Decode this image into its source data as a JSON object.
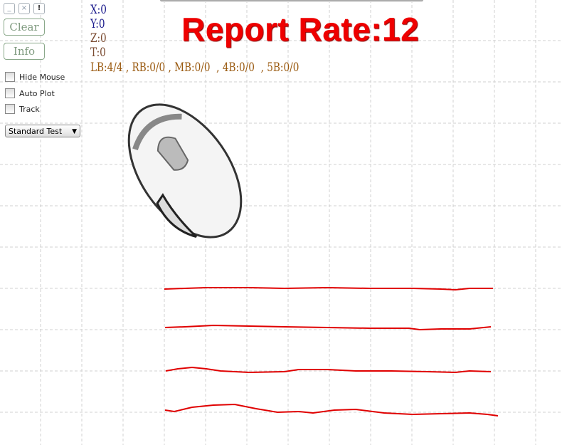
{
  "window_buttons": [
    {
      "label": "_",
      "name": "minimize"
    },
    {
      "label": "×",
      "name": "close"
    },
    {
      "label": "!",
      "name": "alert"
    }
  ],
  "buttons": {
    "clear": "Clear",
    "info": "Info"
  },
  "checkboxes": [
    {
      "label": "Hide Mouse",
      "checked": false
    },
    {
      "label": "Auto Plot",
      "checked": false
    },
    {
      "label": "Track",
      "checked": false
    }
  ],
  "mode_select": {
    "value": "Standard Test"
  },
  "readout": {
    "x": "X:0",
    "y": "Y:0",
    "z": "Z:0",
    "t": "T:0",
    "buttons": "LB:4/4 , RB:0/0 , MB:0/0  , 4B:0/0  , 5B:0/0"
  },
  "title": "Report Rate:12",
  "colors": {
    "title": "#e00000",
    "trace": "#e00000",
    "xy": "#1a1a8c",
    "zt": "#7a4a30",
    "buttons": "#9a5a10",
    "grid": "#d0d0d0"
  }
}
